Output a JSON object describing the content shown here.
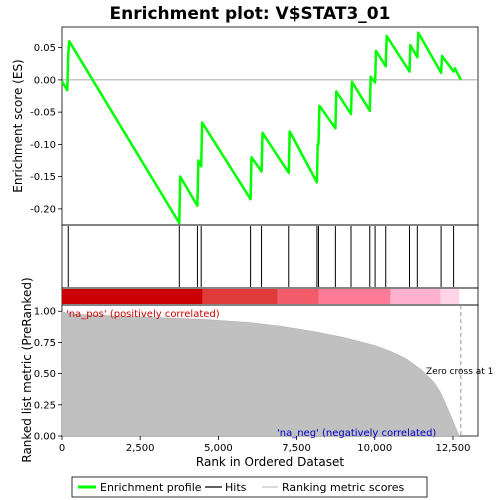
{
  "chart_data": [
    {
      "type": "line",
      "title": "Enrichment plot: V$STAT3_01",
      "ylabel": "Enrichment score (ES)",
      "xlim": [
        0,
        13300
      ],
      "ylim": [
        -0.225,
        0.082
      ],
      "yticks": [
        0.05,
        0.0,
        -0.05,
        -0.1,
        -0.15,
        -0.2
      ],
      "ytick_labels": [
        "0.05",
        "0.00",
        "-0.05",
        "-0.10",
        "-0.15",
        "-0.20"
      ],
      "series": [
        {
          "name": "Enrichment profile",
          "color": "#00ff00",
          "x": [
            0,
            170,
            200,
            230,
            3750,
            3780,
            4330,
            4360,
            4450,
            4480,
            6030,
            6060,
            6380,
            6410,
            7250,
            7280,
            8150,
            8175,
            8200,
            8230,
            8740,
            8770,
            9240,
            9270,
            9840,
            9870,
            10010,
            10040,
            10350,
            10380,
            11110,
            11140,
            11360,
            11390,
            12120,
            12150,
            12520,
            12560,
            12750
          ],
          "y": [
            -0.002,
            -0.016,
            0.041,
            0.06,
            -0.222,
            -0.15,
            -0.195,
            -0.125,
            -0.134,
            -0.066,
            -0.185,
            -0.12,
            -0.142,
            -0.082,
            -0.144,
            -0.08,
            -0.159,
            -0.1,
            -0.1,
            -0.04,
            -0.075,
            -0.018,
            -0.053,
            -0.003,
            -0.048,
            0.005,
            -0.004,
            0.045,
            0.021,
            0.068,
            0.013,
            0.054,
            0.035,
            0.073,
            0.011,
            0.037,
            0.013,
            0.018,
            0.0
          ]
        }
      ]
    },
    {
      "type": "hits",
      "legend_label": "Hits",
      "x": [
        200,
        3750,
        4330,
        4450,
        6030,
        6380,
        7250,
        8150,
        8200,
        8740,
        9240,
        9840,
        10010,
        10350,
        11110,
        11360,
        12120,
        12520
      ]
    },
    {
      "type": "heatmap",
      "colors": [
        "#cc0000",
        "#e03a3a",
        "#f25c6a",
        "#ff7a96",
        "#ffb0cc",
        "#ffd4e8"
      ],
      "breaks": [
        0,
        4500,
        6900,
        8200,
        10500,
        12100,
        12700
      ]
    },
    {
      "type": "area",
      "xlabel": "Rank in Ordered Dataset",
      "ylabel": "Ranked list metric (PreRanked)",
      "series_label": "Ranking metric scores",
      "xlim": [
        0,
        13300
      ],
      "ylim": [
        0,
        1.05
      ],
      "xticks": [
        0,
        2500,
        5000,
        7500,
        10000,
        12500
      ],
      "xtick_labels": [
        "0",
        "2,500",
        "5,000",
        "7,500",
        "10,000",
        "12,500"
      ],
      "yticks": [
        0.0,
        0.25,
        0.5,
        0.75,
        1.0
      ],
      "ytick_labels": [
        "0.00",
        "0.25",
        "0.50",
        "0.75",
        "1.00"
      ],
      "x": [
        0,
        100,
        500,
        1500,
        3000,
        4500,
        6000,
        7000,
        8000,
        9000,
        10000,
        10500,
        11000,
        11500,
        11900,
        12100,
        12300,
        12450,
        12550,
        12650,
        12700
      ],
      "y": [
        1.0,
        0.99,
        0.975,
        0.965,
        0.95,
        0.935,
        0.91,
        0.88,
        0.84,
        0.79,
        0.725,
        0.68,
        0.62,
        0.53,
        0.43,
        0.35,
        0.24,
        0.15,
        0.09,
        0.03,
        0.0
      ],
      "annotations": {
        "pos_label": "'na_pos' (positively correlated)",
        "neg_label": "'na_neg' (negatively correlated)",
        "zero_cross": "Zero cross at 1",
        "zero_cross_x": 12750
      }
    }
  ],
  "legend": {
    "items": [
      {
        "label": "Enrichment profile",
        "color": "#00ff00"
      },
      {
        "label": "Hits",
        "color": "#000000"
      },
      {
        "label": "Ranking metric scores",
        "color": "#c0c0c0"
      }
    ]
  }
}
